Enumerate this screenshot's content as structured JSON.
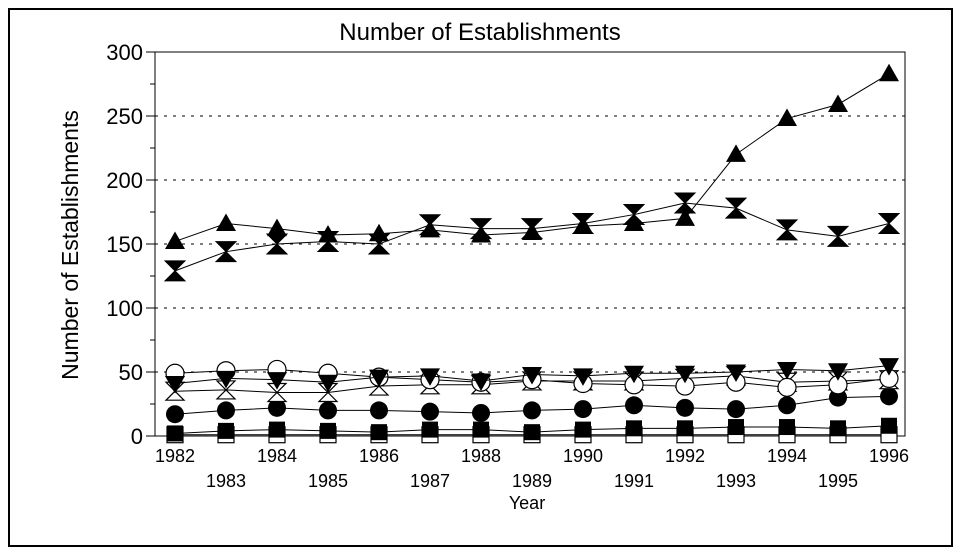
{
  "chart_data": {
    "type": "line",
    "title": "Number of Establishments",
    "xlabel": "Year",
    "ylabel": "Number of Establishments",
    "x": [
      "1982",
      "1983",
      "1984",
      "1985",
      "1986",
      "1987",
      "1988",
      "1989",
      "1990",
      "1991",
      "1992",
      "1993",
      "1994",
      "1995",
      "1996"
    ],
    "ylim": [
      0,
      300
    ],
    "yticks": [
      0,
      50,
      100,
      150,
      200,
      250,
      300
    ],
    "grid": "horizontal dashed",
    "series": [
      {
        "marker": "triangle-up-filled",
        "values": [
          152,
          166,
          162,
          157,
          158,
          161,
          157,
          159,
          164,
          166,
          170,
          220,
          248,
          259,
          283
        ]
      },
      {
        "marker": "hourglass",
        "values": [
          129,
          144,
          150,
          152,
          150,
          165,
          162,
          162,
          166,
          173,
          182,
          178,
          161,
          156,
          166
        ]
      },
      {
        "marker": "triangle-down-filled",
        "values": [
          41,
          45,
          44,
          42,
          46,
          47,
          43,
          48,
          47,
          49,
          49,
          50,
          52,
          51,
          55
        ]
      },
      {
        "marker": "circle-open",
        "values": [
          49,
          51,
          52,
          49,
          46,
          44,
          42,
          44,
          41,
          40,
          39,
          42,
          38,
          40,
          45
        ]
      },
      {
        "marker": "hourglass-open",
        "values": [
          35,
          36,
          34,
          34,
          39,
          40,
          40,
          43,
          43,
          43,
          45,
          47,
          42,
          43,
          44
        ]
      },
      {
        "marker": "circle-filled",
        "values": [
          17,
          20,
          22,
          20,
          20,
          19,
          18,
          20,
          21,
          24,
          22,
          21,
          24,
          30,
          31
        ]
      },
      {
        "marker": "square-filled",
        "values": [
          2,
          4,
          5,
          4,
          3,
          5,
          5,
          3,
          5,
          6,
          6,
          7,
          7,
          6,
          8
        ]
      },
      {
        "marker": "square-open",
        "values": [
          1,
          1,
          1,
          1,
          1,
          1,
          1,
          1,
          1,
          1,
          1,
          1,
          1,
          1,
          1
        ]
      }
    ]
  }
}
